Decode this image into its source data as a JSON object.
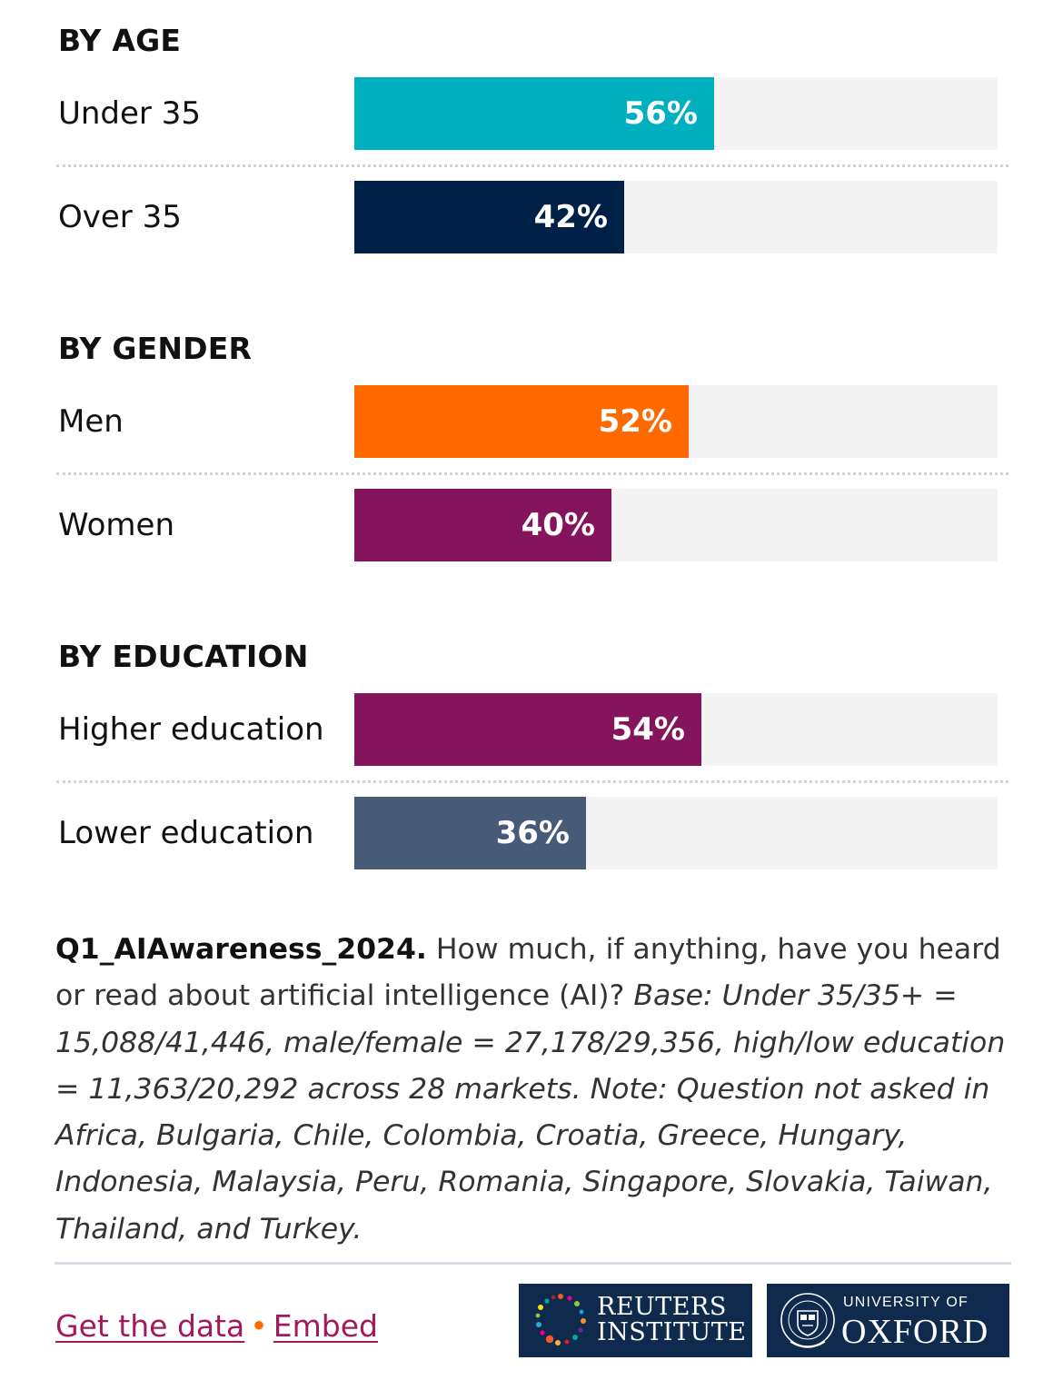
{
  "chart_data": {
    "type": "bar",
    "orientation": "horizontal",
    "xlim": [
      0,
      100
    ],
    "value_suffix": "%",
    "groups": [
      {
        "title": "BY AGE",
        "rows": [
          {
            "label": "Under 35",
            "value": 56,
            "display": "56%",
            "color": "#00b0bf"
          },
          {
            "label": "Over 35",
            "value": 42,
            "display": "42%",
            "color": "#002147"
          }
        ]
      },
      {
        "title": "BY GENDER",
        "rows": [
          {
            "label": "Men",
            "value": 52,
            "display": "52%",
            "color": "#ff6900"
          },
          {
            "label": "Women",
            "value": 40,
            "display": "40%",
            "color": "#84145c"
          }
        ]
      },
      {
        "title": "BY EDUCATION",
        "rows": [
          {
            "label": "Higher education",
            "value": 54,
            "display": "54%",
            "color": "#84145c"
          },
          {
            "label": "Lower education",
            "value": 36,
            "display": "36%",
            "color": "#475b79"
          }
        ]
      }
    ]
  },
  "note": {
    "question_id": "Q1_AIAwareness_2024.",
    "question_text": " How much, if anything, have you heard or read about artificial intelligence (AI)? ",
    "base_text": "Base: Under 35/35+ = 15,088/41,446, male/female = 27,178/29,356, high/low education = 11,363/20,292 across 28 markets. Note: Question not asked in Africa, Bulgaria, Chile, Colombia, Croatia, Greece, Hungary, Indonesia, Malaysia, Peru, Romania, Singapore, Slovakia, Taiwan, Thailand, and Turkey."
  },
  "footer": {
    "get_data_label": "Get the data",
    "separator": "•",
    "embed_label": "Embed",
    "reuters_logo": {
      "line1": "REUTERS",
      "line2": "INSTITUTE"
    },
    "oxford_logo": {
      "line1": "UNIVERSITY OF",
      "line2": "OXFORD"
    }
  }
}
